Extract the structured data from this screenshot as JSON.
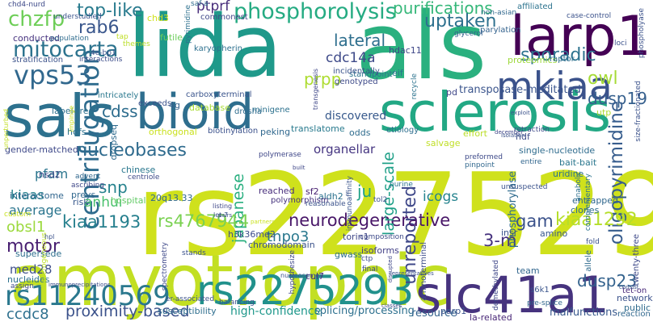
{
  "words": [
    {
      "text": "rs2275294",
      "color": "#cfe11c"
    },
    {
      "text": "amyotrophic",
      "color": "#c2df23"
    },
    {
      "text": "als",
      "color": "#2ab07f"
    },
    {
      "text": "lida",
      "color": "#1f998a"
    },
    {
      "text": "sclerosis",
      "color": "#22a884"
    },
    {
      "text": "bioid",
      "color": "#2e6e8e"
    },
    {
      "text": "sals",
      "color": "#2d718e"
    },
    {
      "text": "larp1",
      "color": "#440154"
    },
    {
      "text": "slc41a1",
      "color": "#46337e"
    },
    {
      "text": "rs2275293",
      "color": "#21918c"
    },
    {
      "text": "mkiaa",
      "color": "#3b528b"
    },
    {
      "text": "centrifugation",
      "color": "#2f6c8e"
    },
    {
      "text": "rs11240569",
      "color": "#2a788e"
    },
    {
      "text": "phosphorolysis",
      "color": "#25ab82"
    },
    {
      "text": "vps53",
      "color": "#31688e"
    },
    {
      "text": "chzfp",
      "color": "#6ece58"
    },
    {
      "text": "top-like",
      "color": "#297b8e"
    },
    {
      "text": "mitocarta",
      "color": "#2c738e"
    },
    {
      "text": "rab6",
      "color": "#39568c"
    },
    {
      "text": "purifications",
      "color": "#35b779"
    },
    {
      "text": "uptaken",
      "color": "#2d708e"
    },
    {
      "text": "sporadic",
      "color": "#2c728e"
    },
    {
      "text": "lateral",
      "color": "#2e6f8e"
    },
    {
      "text": "cdc14a",
      "color": "#3e4a89"
    },
    {
      "text": "ptprf",
      "color": "#472c7a"
    },
    {
      "text": "owl",
      "color": "#a5db36"
    },
    {
      "text": "dusp19",
      "color": "#355f8d"
    },
    {
      "text": "oligopyrimidine",
      "color": "#365c8d"
    },
    {
      "text": "prpp",
      "color": "#addc30"
    },
    {
      "text": "cdss",
      "color": "#2e6d8e"
    },
    {
      "text": "unreported",
      "color": "#3f4889"
    },
    {
      "text": "transposase-meditated",
      "color": "#3a548c"
    },
    {
      "text": "nucleobases",
      "color": "#2f6b8e"
    },
    {
      "text": "japanese",
      "color": "#29af7f"
    },
    {
      "text": "snp",
      "color": "#26828e"
    },
    {
      "text": "kiaa1193",
      "color": "#27808e"
    },
    {
      "text": "rs4767944",
      "color": "#7ad151"
    },
    {
      "text": "neurodegenerative",
      "color": "#481668"
    },
    {
      "text": "kiaa1292",
      "color": "#b5de2b"
    },
    {
      "text": "gam",
      "color": "#3b528b"
    },
    {
      "text": "3-m",
      "color": "#46327e"
    },
    {
      "text": "motor",
      "color": "#481f71"
    },
    {
      "text": "dusp23",
      "color": "#33628d"
    },
    {
      "text": "proximity-based",
      "color": "#3b528b"
    },
    {
      "text": "ccdc8",
      "color": "#2d708e"
    },
    {
      "text": "tnpo3",
      "color": "#2a788e"
    },
    {
      "text": "obsl1",
      "color": "#9bd93c"
    },
    {
      "text": "large-scale",
      "color": "#1fa088"
    },
    {
      "text": "icogs",
      "color": "#25838e"
    },
    {
      "text": "pfam",
      "color": "#2b758e"
    },
    {
      "text": "kiaas",
      "color": "#26828e"
    },
    {
      "text": "average",
      "color": "#2b758e"
    },
    {
      "text": "anhui",
      "color": "#4ac16d"
    },
    {
      "text": "ju",
      "color": "#1fa187"
    },
    {
      "text": "organellar",
      "color": "#453581"
    },
    {
      "text": "med28",
      "color": "#3d4e8a"
    },
    {
      "text": "conducted",
      "color": "#46327e"
    },
    {
      "text": "chd3",
      "color": "#d0e11c"
    },
    {
      "text": "futile",
      "color": "#6ccd5a"
    },
    {
      "text": "phosphorylase",
      "color": "#2f6b8e"
    },
    {
      "text": "hdac11",
      "color": "#3f4788"
    },
    {
      "text": "proteomics",
      "color": "#9dd93b"
    },
    {
      "text": "raptor",
      "color": "#2e6e8e"
    },
    {
      "text": "label-free",
      "color": "#2d708e"
    },
    {
      "text": "dropseq",
      "color": "#2f6b8e"
    },
    {
      "text": "hdfs",
      "color": "#2c718e"
    },
    {
      "text": "gender-matched",
      "color": "#3e4989"
    },
    {
      "text": "interactome",
      "color": "#31668e"
    },
    {
      "text": "preys",
      "color": "#31688e"
    },
    {
      "text": "chinese",
      "color": "#2a778e"
    },
    {
      "text": "20q13.33",
      "color": "#30678d"
    },
    {
      "text": "reached",
      "color": "#472d7b"
    },
    {
      "text": "sf2",
      "color": "#482071"
    },
    {
      "text": "aldh2",
      "color": "#2c728e"
    },
    {
      "text": "nsd2",
      "color": "#3e4989"
    },
    {
      "text": "peking",
      "color": "#31688e"
    },
    {
      "text": "translatome",
      "color": "#297a8e"
    },
    {
      "text": "biotinylation",
      "color": "#3b518b"
    },
    {
      "text": "chromodomain",
      "color": "#3b528b"
    },
    {
      "text": "polymorphism",
      "color": "#46337e"
    },
    {
      "text": "h3k36me2",
      "color": "#3d4d8a"
    },
    {
      "text": "isoforms",
      "color": "#424086"
    },
    {
      "text": "torin1",
      "color": "#3f4788"
    },
    {
      "text": "cul7",
      "color": "#472c7a"
    },
    {
      "text": "gwass",
      "color": "#2e6f8e"
    },
    {
      "text": "nucleides",
      "color": "#2c718e"
    },
    {
      "text": "supersede",
      "color": "#2e6f8e"
    },
    {
      "text": "hospital",
      "color": "#5ec962"
    },
    {
      "text": "risk",
      "color": "#38588c"
    },
    {
      "text": "susceptibility",
      "color": "#2e6e8e"
    },
    {
      "text": "high-confidence",
      "color": "#1f988b"
    },
    {
      "text": "splicing/processing",
      "color": "#2d708e"
    },
    {
      "text": "resource",
      "color": "#33628d"
    },
    {
      "text": "malfunctions",
      "color": "#38588c"
    },
    {
      "text": "la-related",
      "color": "#482677"
    },
    {
      "text": "parp1",
      "color": "#3a548c"
    },
    {
      "text": "network",
      "color": "#3b528b"
    },
    {
      "text": "public",
      "color": "#2f6b8e"
    },
    {
      "text": "reaction",
      "color": "#31688e"
    },
    {
      "text": "tet-on",
      "color": "#482878"
    },
    {
      "text": "twenty-three",
      "color": "#3e4989"
    },
    {
      "text": "amino",
      "color": "#38588c"
    },
    {
      "text": "insr",
      "color": "#3a548c"
    },
    {
      "text": "team",
      "color": "#31668e"
    },
    {
      "text": "entrapped",
      "color": "#30678d"
    },
    {
      "text": "clones",
      "color": "#2f6c8e"
    },
    {
      "text": "uridine",
      "color": "#2c718e"
    },
    {
      "text": "bait-bait",
      "color": "#2a778e"
    },
    {
      "text": "single-nucleotide",
      "color": "#2f6c8e"
    },
    {
      "text": "hdf",
      "color": "#3d4d8a"
    },
    {
      "text": "utp",
      "color": "#addc30"
    },
    {
      "text": "discovered",
      "color": "#37598c"
    },
    {
      "text": "salvage",
      "color": "#c0df25"
    },
    {
      "text": "effort",
      "color": "#bade28"
    },
    {
      "text": "etiology",
      "color": "#2e6f8e"
    },
    {
      "text": "odds",
      "color": "#2f6c8e"
    },
    {
      "text": "eif",
      "color": "#2b748e"
    },
    {
      "text": "standpoint",
      "color": "#2c738e"
    },
    {
      "text": "genotyped",
      "color": "#3e4a89"
    },
    {
      "text": "incidentally",
      "color": "#3a538b"
    },
    {
      "text": "carboxyterminal",
      "color": "#3a548c"
    },
    {
      "text": "karyopherin",
      "color": "#2d708e"
    },
    {
      "text": "intricately",
      "color": "#2a788e"
    },
    {
      "text": "minigene",
      "color": "#2c718e"
    },
    {
      "text": "drosha",
      "color": "#2f6c8e"
    },
    {
      "text": "4g",
      "color": "#34618d"
    },
    {
      "text": "database",
      "color": "#a8db34"
    },
    {
      "text": "exceeds",
      "color": "#3b528b"
    },
    {
      "text": "orthogonal",
      "color": "#cae11f"
    },
    {
      "text": "understudied",
      "color": "#3a548c"
    },
    {
      "text": "population",
      "color": "#2f6c8e"
    },
    {
      "text": "stratification",
      "color": "#3b528b"
    },
    {
      "text": "interactions",
      "color": "#3d4d8a"
    },
    {
      "text": "commonest",
      "color": "#3f4788"
    },
    {
      "text": "affiliated",
      "color": "#2c738e"
    },
    {
      "text": "case-control",
      "color": "#3b528b"
    },
    {
      "text": "non-asian",
      "color": "#30678d"
    },
    {
      "text": "parylation",
      "color": "#33628d"
    },
    {
      "text": "glycerol",
      "color": "#34608d"
    },
    {
      "text": "pd",
      "color": "#3f4788"
    },
    {
      "text": "recycle",
      "color": "#2c738e"
    },
    {
      "text": "purine",
      "color": "#2c738e"
    },
    {
      "text": "preformed",
      "color": "#3e4a89"
    },
    {
      "text": "pinpoint",
      "color": "#31688e"
    },
    {
      "text": "entire",
      "color": "#31668e"
    },
    {
      "text": "unsuspected",
      "color": "#3b528b"
    },
    {
      "text": "ascribing",
      "color": "#3f4788"
    },
    {
      "text": "advent",
      "color": "#30678d"
    },
    {
      "text": "centriole",
      "color": "#3e4a89"
    },
    {
      "text": "polymerase",
      "color": "#3f4788"
    },
    {
      "text": "reasonable",
      "color": "#3b528b"
    },
    {
      "text": "immunoaffinity",
      "color": "#3a548c"
    },
    {
      "text": "tol2",
      "color": "#3b528b"
    },
    {
      "text": "anabolic",
      "color": "#2d708e"
    },
    {
      "text": "complementary",
      "color": "#2c738e"
    },
    {
      "text": "composition",
      "color": "#3e4a89"
    },
    {
      "text": "final",
      "color": "#3e4a89"
    },
    {
      "text": "ctp",
      "color": "#3d4e8a"
    },
    {
      "text": "stands",
      "color": "#3b528b"
    },
    {
      "text": "spectrometry",
      "color": "#3e4989"
    },
    {
      "text": "balancing",
      "color": "#3b518b"
    },
    {
      "text": "hypothesize",
      "color": "#3f4788"
    },
    {
      "text": "er-associated",
      "color": "#3b528b"
    },
    {
      "text": "heterogeneous",
      "color": "#bddf26"
    },
    {
      "text": "custom",
      "color": "#c8e020"
    },
    {
      "text": "assign",
      "color": "#3e4a89"
    },
    {
      "text": "allele",
      "color": "#2f6b8e"
    },
    {
      "text": "s6k1",
      "color": "#3a548c"
    },
    {
      "text": "demethylated",
      "color": "#3f4788"
    },
    {
      "text": "aminoterminal",
      "color": "#3d4d8a"
    },
    {
      "text": "pre-splice",
      "color": "#30678d"
    },
    {
      "text": "fold",
      "color": "#3b528b"
    },
    {
      "text": "chd4-nurd",
      "color": "#3e4a89"
    },
    {
      "text": "4e-bp1",
      "color": "#3b528b"
    },
    {
      "text": "saf-a",
      "color": "#2f6c8e"
    },
    {
      "text": "themes",
      "color": "#bade28"
    },
    {
      "text": "tap",
      "color": "#c0df25"
    },
    {
      "text": "pyrimidine",
      "color": "#2d708e"
    },
    {
      "text": "retraction",
      "color": "#3e4989"
    },
    {
      "text": "size-fractionated",
      "color": "#3b528b"
    },
    {
      "text": "loci",
      "color": "#3b528b"
    },
    {
      "text": "phospholyase",
      "color": "#3b528b"
    },
    {
      "text": "transgenesis",
      "color": "#3f4788"
    },
    {
      "text": "let-7",
      "color": "#3b528b"
    },
    {
      "text": "listing",
      "color": "#3f4788"
    },
    {
      "text": "pairs",
      "color": "#3b528b"
    },
    {
      "text": "hpl",
      "color": "#3b528b"
    },
    {
      "text": "built",
      "color": "#3f4788"
    },
    {
      "text": "partners",
      "color": "#cae11f"
    },
    {
      "text": "isolation",
      "color": "#3b528b"
    },
    {
      "text": "impinge",
      "color": "#c8e020"
    },
    {
      "text": "unperturbed",
      "color": "#c2df23"
    },
    {
      "text": "december",
      "color": "#3f4788"
    },
    {
      "text": "exploit",
      "color": "#3b528b"
    },
    {
      "text": "immunoprecipitations",
      "color": "#3d4d8a"
    },
    {
      "text": "classes",
      "color": "#3e4a89"
    },
    {
      "text": "disrupted",
      "color": "#3f4788"
    },
    {
      "text": "representatives",
      "color": "#3b528b"
    },
    {
      "text": "consist",
      "color": "#3b528b"
    },
    {
      "text": "nucleosomes",
      "color": "#3b528b"
    }
  ]
}
